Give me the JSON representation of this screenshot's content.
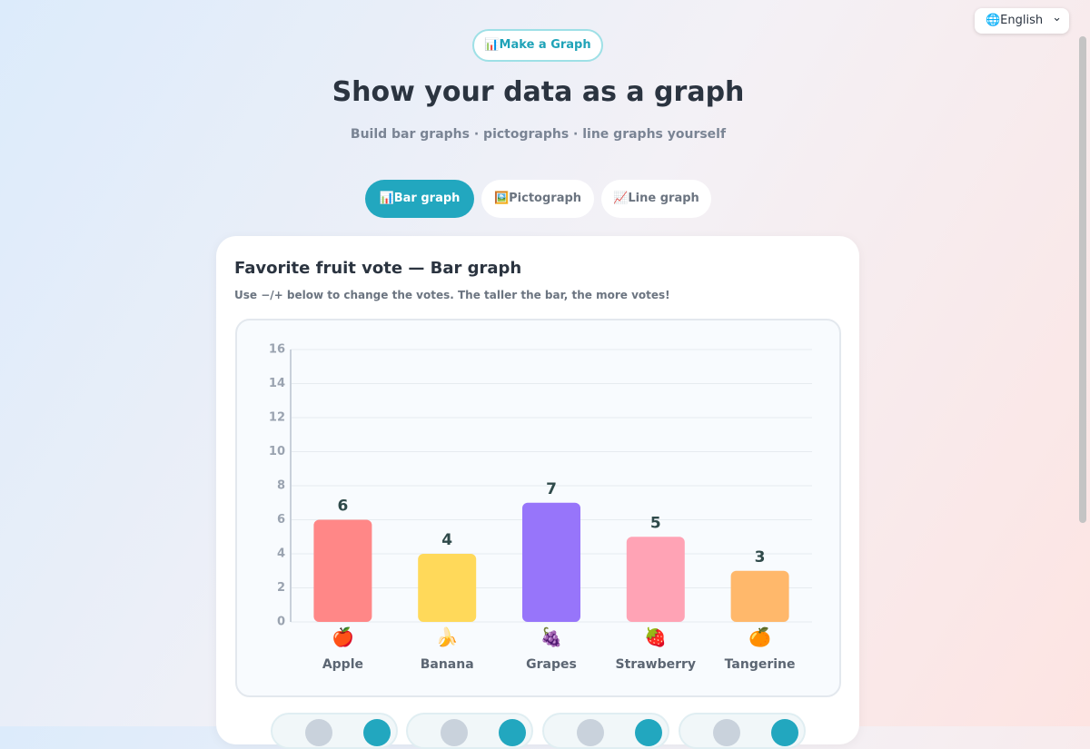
{
  "header": {
    "badge": "📊Make a Graph",
    "title": "Show your data as a graph",
    "subtitle": "Build bar graphs · pictographs · line graphs yourself",
    "language": "🌐English"
  },
  "tabs": [
    "📊Bar graph",
    "🖼️Pictograph",
    "📈Line graph"
  ],
  "card": {
    "title": "Favorite fruit vote — Bar graph",
    "hint": "Use −/+ below to change the votes. The taller the bar, the more votes!"
  },
  "chart_data": {
    "type": "bar",
    "categories": [
      "Apple",
      "Banana",
      "Grapes",
      "Strawberry",
      "Tangerine"
    ],
    "icons": [
      "🍎",
      "🍌",
      "🍇",
      "🍓",
      "🍊"
    ],
    "values": [
      6,
      4,
      7,
      5,
      3
    ],
    "colors": [
      "#ff8787",
      "#ffd95a",
      "#9775fa",
      "#ffa3b5",
      "#ffb86b"
    ],
    "ylim": [
      0,
      16
    ],
    "yticks": [
      0,
      2,
      4,
      6,
      8,
      10,
      12,
      14,
      16
    ],
    "grid": true
  }
}
